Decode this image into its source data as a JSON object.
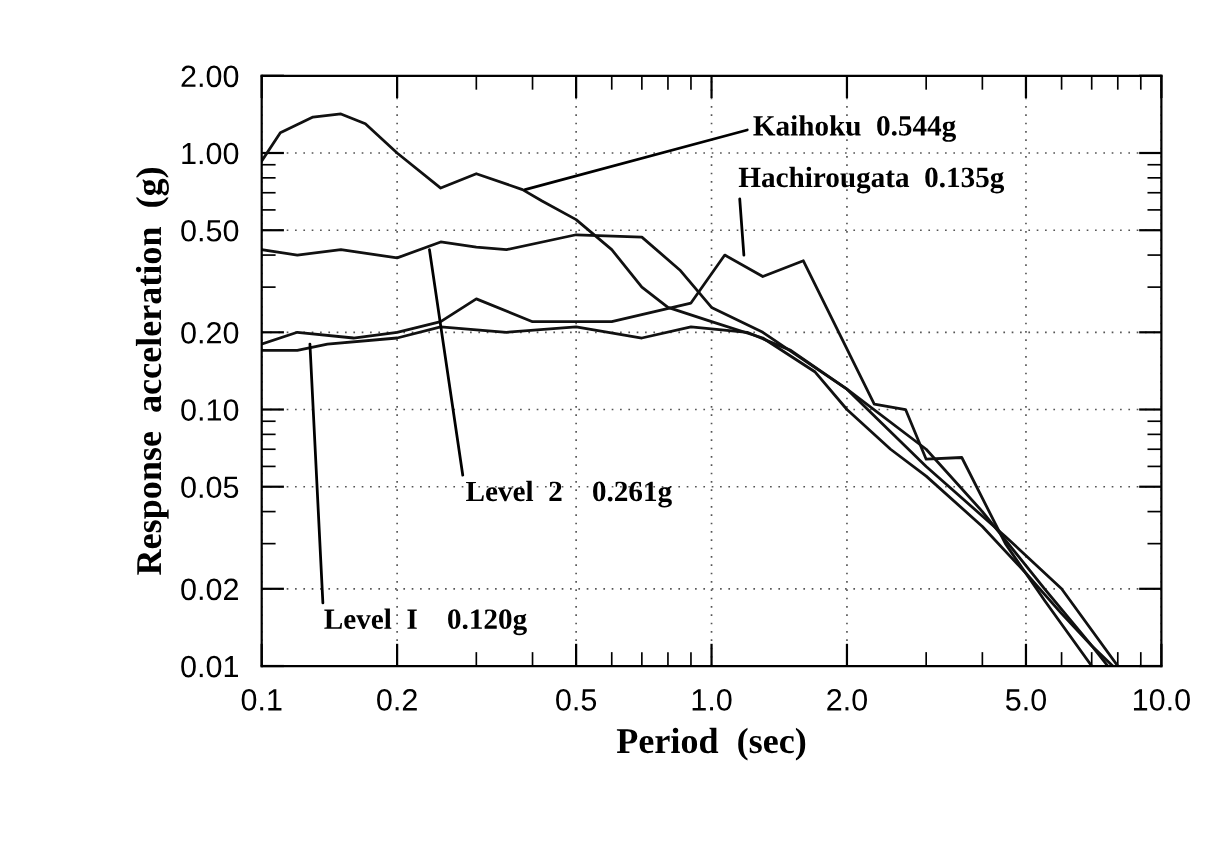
{
  "chart_data": {
    "type": "line",
    "xlabel": "Period  (sec)",
    "ylabel": "Response  acceleration  (g)",
    "log": "xy",
    "xlim": [
      0.1,
      10.0
    ],
    "ylim": [
      0.01,
      2.0
    ],
    "xticks": [
      {
        "value": 0.1,
        "label": "0.1"
      },
      {
        "value": 0.2,
        "label": "0.2"
      },
      {
        "value": 0.5,
        "label": "0.5"
      },
      {
        "value": 1.0,
        "label": "1.0"
      },
      {
        "value": 2.0,
        "label": "2.0"
      },
      {
        "value": 5.0,
        "label": "5.0"
      },
      {
        "value": 10.0,
        "label": "10.0"
      }
    ],
    "yticks": [
      {
        "value": 0.01,
        "label": "0.01"
      },
      {
        "value": 0.02,
        "label": "0.02"
      },
      {
        "value": 0.05,
        "label": "0.05"
      },
      {
        "value": 0.1,
        "label": "0.10"
      },
      {
        "value": 0.2,
        "label": "0.20"
      },
      {
        "value": 0.5,
        "label": "0.50"
      },
      {
        "value": 1.0,
        "label": "1.00"
      },
      {
        "value": 2.0,
        "label": "2.00"
      }
    ],
    "grid": true,
    "legend": false,
    "marker": "none",
    "line_style": "solid",
    "series": [
      {
        "color": "#111111",
        "x": [
          0.1,
          0.11,
          0.13,
          0.15,
          0.17,
          0.2,
          0.25,
          0.3,
          0.38,
          0.42,
          0.5,
          0.6,
          0.7,
          0.8,
          1.0,
          1.3,
          1.7,
          2.0,
          2.5,
          3.0,
          4.0,
          5.0,
          6.0,
          7.0,
          7.6
        ],
        "values": [
          0.93,
          1.2,
          1.38,
          1.42,
          1.3,
          1.0,
          0.73,
          0.83,
          0.72,
          0.65,
          0.55,
          0.42,
          0.3,
          0.25,
          0.22,
          0.19,
          0.14,
          0.1,
          0.07,
          0.055,
          0.035,
          0.023,
          0.016,
          0.012,
          0.01
        ]
      },
      {
        "color": "#111111",
        "x": [
          0.1,
          0.12,
          0.16,
          0.2,
          0.25,
          0.3,
          0.4,
          0.6,
          0.9,
          1.07,
          1.3,
          1.6,
          1.8,
          2.3,
          2.7,
          3.0,
          3.6,
          4.5,
          5.5,
          7.0
        ],
        "values": [
          0.18,
          0.2,
          0.19,
          0.2,
          0.22,
          0.27,
          0.22,
          0.22,
          0.26,
          0.4,
          0.33,
          0.38,
          0.25,
          0.105,
          0.1,
          0.064,
          0.065,
          0.03,
          0.018,
          0.01
        ]
      },
      {
        "color": "#111111",
        "x": [
          0.1,
          0.12,
          0.15,
          0.2,
          0.25,
          0.3,
          0.35,
          0.5,
          0.7,
          0.85,
          1.0,
          1.3,
          2.0,
          3.0,
          4.5,
          6.0,
          8.0
        ],
        "values": [
          0.42,
          0.4,
          0.42,
          0.39,
          0.45,
          0.43,
          0.42,
          0.48,
          0.47,
          0.35,
          0.25,
          0.2,
          0.12,
          0.06,
          0.032,
          0.02,
          0.01
        ]
      },
      {
        "color": "#111111",
        "x": [
          0.1,
          0.12,
          0.14,
          0.2,
          0.25,
          0.35,
          0.5,
          0.7,
          0.9,
          1.2,
          1.5,
          2.0,
          3.0,
          4.0,
          5.5,
          7.0,
          7.8
        ],
        "values": [
          0.17,
          0.17,
          0.18,
          0.19,
          0.21,
          0.2,
          0.21,
          0.19,
          0.21,
          0.2,
          0.17,
          0.12,
          0.07,
          0.04,
          0.02,
          0.012,
          0.01
        ]
      }
    ],
    "annotations": [
      {
        "text": "Kaihoku  0.544g",
        "x": 0.385,
        "y": 0.72
      },
      {
        "text": "Hachirougata  0.135g",
        "x": 1.18,
        "y": 0.4
      },
      {
        "text": "Level  2    0.261g",
        "x": 0.236,
        "y": 0.42
      },
      {
        "text": "Level  I    0.120g",
        "x": 0.128,
        "y": 0.18
      }
    ]
  }
}
